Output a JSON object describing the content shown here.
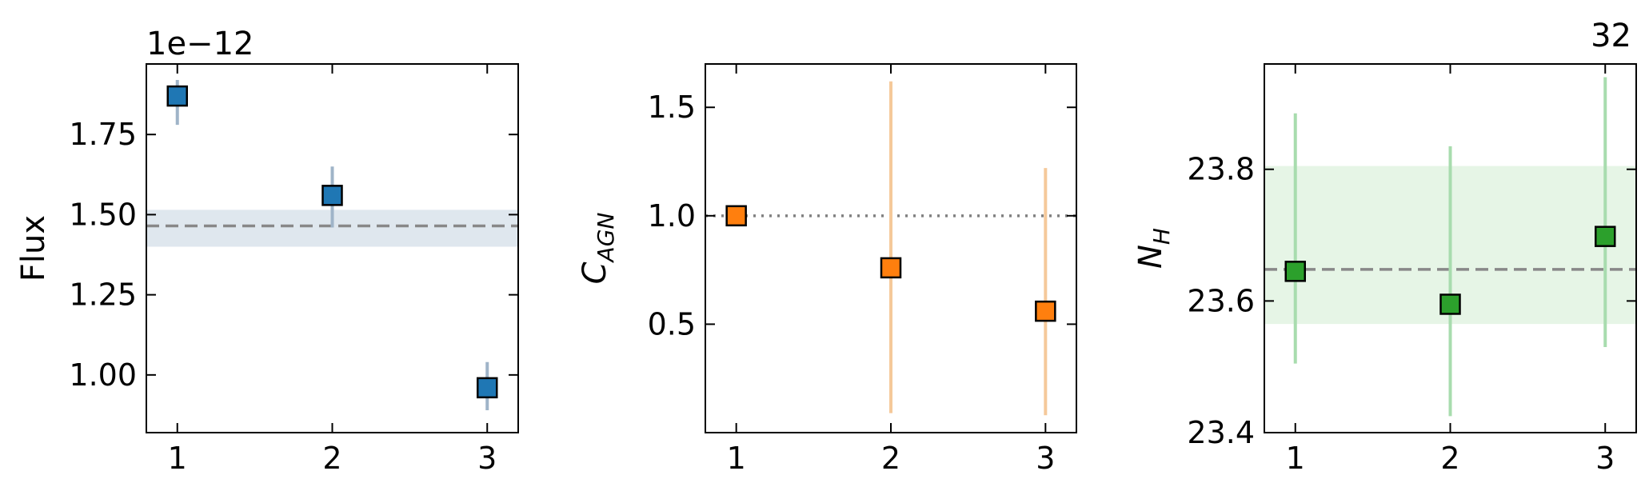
{
  "chart_data": [
    {
      "type": "scatter",
      "ylabel": "Flux",
      "offset_text": "1e−12",
      "marker": "square",
      "marker_color": "#1f77b4",
      "errorbar_color": "#9fb4c8",
      "xlim": [
        0.8,
        3.2
      ],
      "ylim": [
        0.82,
        1.97
      ],
      "xticks": [
        1,
        2,
        3
      ],
      "xtick_labels": [
        "1",
        "2",
        "3"
      ],
      "yticks": [
        1.0,
        1.25,
        1.5,
        1.75
      ],
      "ytick_labels": [
        "1.00",
        "1.25",
        "1.50",
        "1.75"
      ],
      "x": [
        1,
        2,
        3
      ],
      "y": [
        1.87,
        1.56,
        0.96
      ],
      "yerr_low": [
        1.78,
        1.46,
        0.89
      ],
      "yerr_high": [
        1.92,
        1.65,
        1.04
      ],
      "reference_line": {
        "value": 1.465,
        "style": "dashed",
        "color": "#888888"
      },
      "band": {
        "low": 1.4,
        "high": 1.515,
        "color": "#dfe7ee"
      }
    },
    {
      "type": "scatter",
      "ylabel": "C",
      "ylabel_sub": "AGN",
      "marker": "square",
      "marker_color": "#ff7f0e",
      "errorbar_color": "#f5c99a",
      "xlim": [
        0.8,
        3.2
      ],
      "ylim": [
        0.0,
        1.7
      ],
      "xticks": [
        1,
        2,
        3
      ],
      "xtick_labels": [
        "1",
        "2",
        "3"
      ],
      "yticks": [
        0.5,
        1.0,
        1.5
      ],
      "ytick_labels": [
        "0.5",
        "1.0",
        "1.5"
      ],
      "x": [
        1,
        2,
        3
      ],
      "y": [
        1.0,
        0.76,
        0.56
      ],
      "yerr_low": [
        null,
        0.09,
        0.08
      ],
      "yerr_high": [
        null,
        1.62,
        1.22
      ],
      "reference_line": {
        "value": 1.0,
        "style": "dotted",
        "color": "#808080"
      }
    },
    {
      "type": "scatter",
      "ylabel": "N",
      "ylabel_sub": "H",
      "corner_label": "32",
      "marker": "square",
      "marker_color": "#2ca02c",
      "errorbar_color": "#a8dcae",
      "xlim": [
        0.8,
        3.2
      ],
      "ylim": [
        23.4,
        23.96
      ],
      "xticks": [
        1,
        2,
        3
      ],
      "xtick_labels": [
        "1",
        "2",
        "3"
      ],
      "yticks": [
        23.4,
        23.6,
        23.8
      ],
      "ytick_labels": [
        "23.4",
        "23.6",
        "23.8"
      ],
      "x": [
        1,
        2,
        3
      ],
      "y": [
        23.645,
        23.595,
        23.698
      ],
      "yerr_low": [
        23.505,
        23.425,
        23.53
      ],
      "yerr_high": [
        23.885,
        23.835,
        23.94
      ],
      "reference_line": {
        "value": 23.648,
        "style": "dashed",
        "color": "#888888"
      },
      "band": {
        "low": 23.565,
        "high": 23.805,
        "color": "#e6f5e6"
      }
    }
  ]
}
